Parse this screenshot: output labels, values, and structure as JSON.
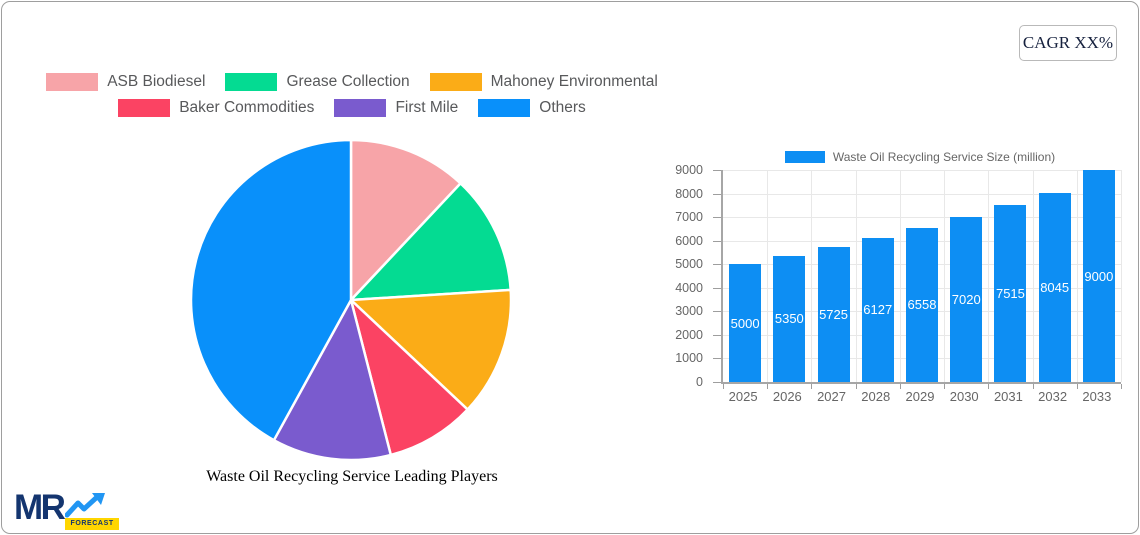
{
  "header": {
    "cagr_label": "CAGR XX%"
  },
  "logo": {
    "text": "MR",
    "badge": "FORECAST"
  },
  "chart_data": [
    {
      "type": "pie",
      "title": "Waste Oil Recycling Service Leading Players",
      "labels": [
        "ASB Biodiesel",
        "Grease Collection",
        "Mahoney Environmental",
        "Baker Commodities",
        "First Mile",
        "Others"
      ],
      "values_pct": [
        12,
        12,
        13,
        9,
        12,
        42
      ],
      "colors": [
        "#f7a4a8",
        "#04db92",
        "#fbac17",
        "#fb4363",
        "#7a5bce",
        "#0990fa"
      ],
      "start_angle_deg": 0,
      "direction": "clockwise",
      "legend_position": "top",
      "legend_rows": [
        3,
        3
      ],
      "slice_border_color": "#ffffff"
    },
    {
      "type": "bar",
      "series_name": "Waste Oil Recycling Service Size (million)",
      "categories": [
        "2025",
        "2026",
        "2027",
        "2028",
        "2029",
        "2030",
        "2031",
        "2032",
        "2033"
      ],
      "values": [
        5000,
        5350,
        5725,
        6127,
        6558,
        7020,
        7515,
        8045,
        9000
      ],
      "bar_color": "#0d8ef3",
      "ylim": [
        0,
        9000
      ],
      "y_tick_step": 1000,
      "grid": true,
      "value_labels": "inside-center-white",
      "legend_position": "top"
    }
  ]
}
